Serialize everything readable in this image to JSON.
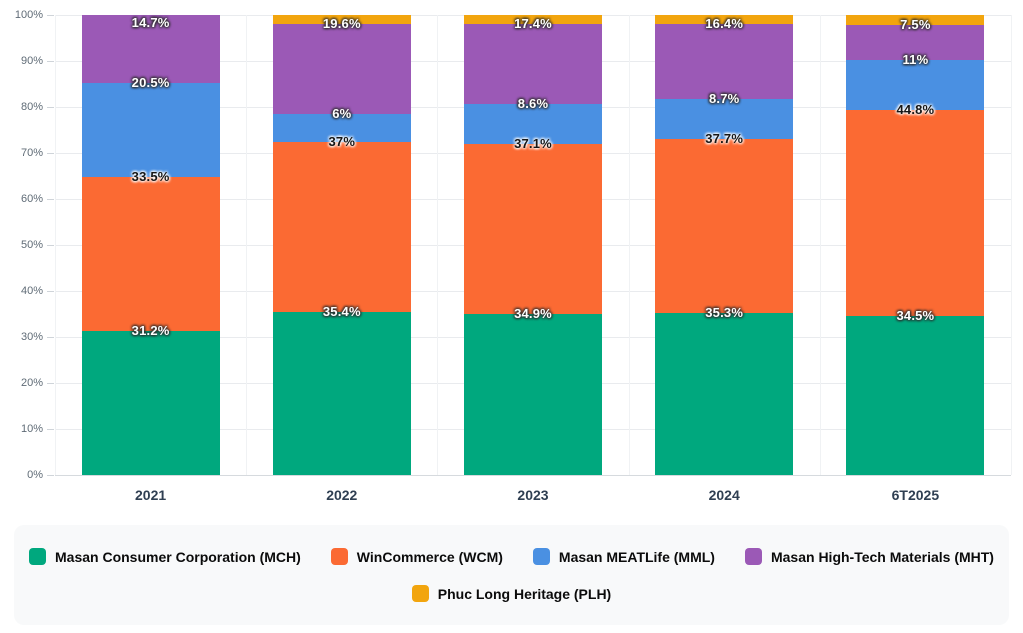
{
  "chart_data": {
    "type": "bar",
    "variant": "stacked-percent-column",
    "title": "",
    "xlabel": "",
    "ylabel": "",
    "ylim": [
      0,
      100
    ],
    "grid": true,
    "legend_position": "bottom",
    "categories": [
      "2021",
      "2022",
      "2023",
      "2024",
      "6T2025"
    ],
    "y_ticks": [
      "0%",
      "10%",
      "20%",
      "30%",
      "40%",
      "50%",
      "60%",
      "70%",
      "80%",
      "90%",
      "100%"
    ],
    "series": [
      {
        "name": "Masan Consumer Corporation (MCH)",
        "color": "#00A87E",
        "label_style": "light",
        "values": [
          31.2,
          35.4,
          34.9,
          35.3,
          34.5
        ],
        "labels": [
          "31.2%",
          "35.4%",
          "34.9%",
          "35.3%",
          "34.5%"
        ]
      },
      {
        "name": "WinCommerce (WCM)",
        "color": "#FB6A33",
        "label_style": "dark",
        "values": [
          33.5,
          37,
          37.1,
          37.7,
          44.8
        ],
        "labels": [
          "33.5%",
          "37%",
          "37.1%",
          "37.7%",
          "44.8%"
        ]
      },
      {
        "name": "Masan MEATLife (MML)",
        "color": "#4A90E2",
        "label_style": "light",
        "values": [
          20.5,
          6,
          8.6,
          8.7,
          11
        ],
        "labels": [
          "20.5%",
          "6%",
          "8.6%",
          "8.7%",
          "11%"
        ]
      },
      {
        "name": "Masan High-Tech Materials (MHT)",
        "color": "#9B59B6",
        "label_style": "light",
        "values": [
          14.7,
          19.6,
          17.4,
          16.4,
          7.5
        ],
        "labels": [
          "14.7%",
          "19.6%",
          "17.4%",
          "16.4%",
          "7.5%"
        ]
      },
      {
        "name": "Phuc Long Heritage (PLH)",
        "color": "#F2A50E",
        "label_style": "light",
        "values": [
          0,
          2,
          2,
          1.9,
          2.2
        ],
        "labels": [
          "",
          "",
          "",
          "",
          ""
        ]
      }
    ]
  }
}
